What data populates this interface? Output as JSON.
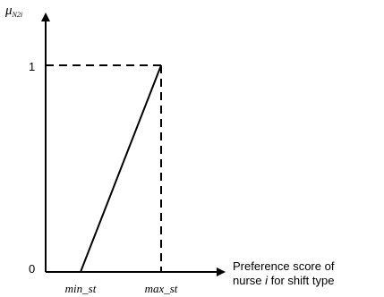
{
  "chart_data": {
    "type": "line",
    "title": "",
    "ylabel": {
      "symbol": "μ",
      "subscript": "N2i"
    },
    "xlabel": {
      "line1": "Preference score of",
      "line2_prefix": "nurse ",
      "line2_var": "i",
      "line2_suffix": " for shift type"
    },
    "x_ticks": [
      "min_st",
      "max_st"
    ],
    "y_ticks": [
      "0",
      "1"
    ],
    "ylim": [
      0,
      1
    ],
    "series": [
      {
        "points": [
          {
            "x": "min_st",
            "y": 0
          },
          {
            "x": "max_st",
            "y": 1
          }
        ]
      }
    ],
    "reference_lines": [
      {
        "kind": "horizontal-dashed",
        "from_x": 0,
        "to_x": "max_st",
        "y": 1
      },
      {
        "kind": "vertical-dashed",
        "x": "max_st",
        "from_y": 1,
        "to_y": 0
      }
    ],
    "grid": false,
    "legend": "none"
  }
}
